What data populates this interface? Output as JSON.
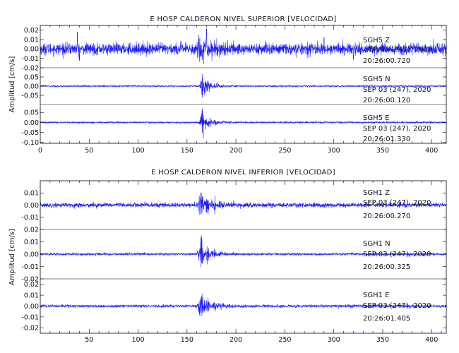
{
  "chart_data": [
    {
      "type": "line",
      "title": "E HOSP CALDERON NIVEL SUPERIOR [VELOCIDAD]",
      "ylabel": "Amplitud [cm/s]",
      "xlim": [
        0,
        415
      ],
      "x_ticks": [
        "0",
        "50",
        "100",
        "150",
        "200",
        "250",
        "300",
        "350",
        "400"
      ],
      "x_tick_values": [
        0,
        50,
        100,
        150,
        200,
        250,
        300,
        350,
        400
      ],
      "show_x_tick_labels": true,
      "series": [
        {
          "name": "SGH5 Z",
          "date_label": "SEP 03 (247), 2020",
          "time_label": "20:26:00.720",
          "ylim": [
            -0.02,
            0.025
          ],
          "y_ticks": [
            "0.02",
            "0.01",
            "0.00",
            "-0.01",
            "-0.02"
          ],
          "y_tick_values": [
            0.02,
            0.01,
            0.0,
            -0.01,
            -0.02
          ],
          "envelope": {
            "noise": 0.0055,
            "event_peak": 0.011,
            "event_time": 162,
            "event_width": 14,
            "spikes": [
              [
                38,
                0.018
              ],
              [
                40,
                -0.012
              ],
              [
                170,
                0.021
              ],
              [
                290,
                0.012
              ],
              [
                320,
                -0.011
              ]
            ]
          }
        },
        {
          "name": "SGH5 N",
          "date_label": "SEP 03 (247), 2020",
          "time_label": "20:26:00.120",
          "ylim": [
            -0.1,
            0.1
          ],
          "y_ticks": [
            "0.05",
            "0.00",
            "-0.05"
          ],
          "y_tick_values": [
            0.05,
            0.0,
            -0.05
          ],
          "envelope": {
            "noise": 0.004,
            "event_peak": 0.075,
            "event_time": 166,
            "event_width": 7,
            "spikes": []
          }
        },
        {
          "name": "SGH5 E",
          "date_label": "SEP 03 (247), 2020",
          "time_label": "20:26:01.330",
          "ylim": [
            -0.105,
            0.09
          ],
          "y_ticks": [
            "0.05",
            "0.00",
            "-0.05",
            "-0.10"
          ],
          "y_tick_values": [
            0.05,
            0.0,
            -0.05,
            -0.1
          ],
          "envelope": {
            "noise": 0.004,
            "event_peak": 0.075,
            "event_time": 166,
            "event_width": 7,
            "spikes": []
          }
        }
      ]
    },
    {
      "type": "line",
      "title": "E HOSP CALDERON NIVEL INFERIOR [VELOCIDAD]",
      "ylabel": "Amplitud [cm/s]",
      "xlim": [
        0,
        415
      ],
      "x_ticks": [
        "50",
        "100",
        "150",
        "200",
        "250",
        "300",
        "350",
        "400"
      ],
      "x_tick_values": [
        50,
        100,
        150,
        200,
        250,
        300,
        350,
        400
      ],
      "show_x_tick_labels": true,
      "series": [
        {
          "name": "SGH1 Z",
          "date_label": "SEP 03 (247), 2020",
          "time_label": "20:26:00.270",
          "ylim": [
            -0.02,
            0.02
          ],
          "y_ticks": [
            "0.01",
            "0.00",
            "-0.01"
          ],
          "y_tick_values": [
            0.01,
            0.0,
            -0.01
          ],
          "envelope": {
            "noise": 0.0017,
            "event_peak": 0.011,
            "event_time": 164,
            "event_width": 9,
            "spikes": []
          }
        },
        {
          "name": "SGH1 N",
          "date_label": "SEP 03 (247), 2020",
          "time_label": "20:26:00.325",
          "ylim": [
            -0.02,
            0.02
          ],
          "y_ticks": [
            "0.02",
            "0.01",
            "0.00",
            "-0.01",
            "-0.02"
          ],
          "y_tick_values": [
            0.02,
            0.01,
            0.0,
            -0.01,
            -0.02
          ],
          "envelope": {
            "noise": 0.0009,
            "event_peak": 0.014,
            "event_time": 164,
            "event_width": 9,
            "spikes": []
          }
        },
        {
          "name": "SGH1 E",
          "date_label": "SEP 03 (247), 2020",
          "time_label": "20:26:01.405",
          "ylim": [
            -0.025,
            0.025
          ],
          "y_ticks": [
            "0.02",
            "0.01",
            "0.00",
            "-0.01",
            "-0.02"
          ],
          "y_tick_values": [
            0.02,
            0.01,
            0.0,
            -0.01,
            -0.02
          ],
          "envelope": {
            "noise": 0.0012,
            "event_peak": 0.015,
            "event_time": 164,
            "event_width": 9,
            "spikes": []
          }
        }
      ]
    }
  ],
  "colors": {
    "trace": "#1a1aff",
    "axes": "#000000",
    "background": "#ffffff"
  }
}
